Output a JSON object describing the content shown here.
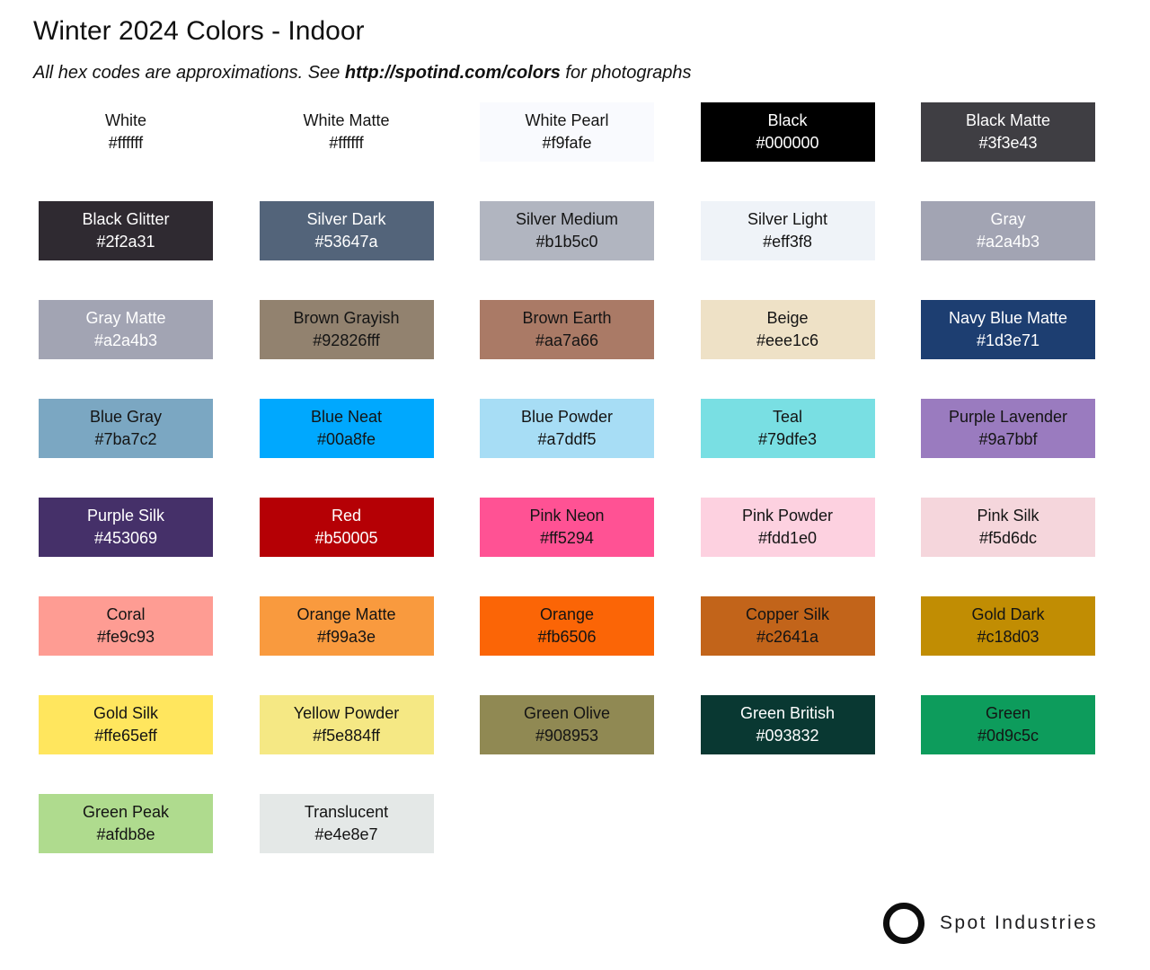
{
  "title": "Winter 2024 Colors - Indoor",
  "subtitle": {
    "prefix": "All hex codes are approximations. See ",
    "url": "http://spotind.com/colors",
    "suffix": " for photographs"
  },
  "brand": {
    "name": "Spot Industries",
    "logo": "circle-outline-icon"
  },
  "swatches": [
    {
      "name": "White",
      "hex": "#ffffff",
      "bg": "#ffffff",
      "text": "dark"
    },
    {
      "name": "White Matte",
      "hex": "#ffffff",
      "bg": "#ffffff",
      "text": "dark"
    },
    {
      "name": "White Pearl",
      "hex": "#f9fafe",
      "bg": "#f9fafe",
      "text": "dark"
    },
    {
      "name": "Black",
      "hex": "#000000",
      "bg": "#000000",
      "text": "light"
    },
    {
      "name": "Black Matte",
      "hex": "#3f3e43",
      "bg": "#3f3e43",
      "text": "light"
    },
    {
      "name": "Black Glitter",
      "hex": "#2f2a31",
      "bg": "#2f2a31",
      "text": "light",
      "texture": "glitter"
    },
    {
      "name": "Silver Dark",
      "hex": "#53647a",
      "bg": "#53647a",
      "text": "light"
    },
    {
      "name": "Silver Medium",
      "hex": "#b1b5c0",
      "bg": "#b1b5c0",
      "text": "dark"
    },
    {
      "name": "Silver Light",
      "hex": "#eff3f8",
      "bg": "#eff3f8",
      "text": "dark"
    },
    {
      "name": "Gray",
      "hex": "#a2a4b3",
      "bg": "#a2a4b3",
      "text": "light"
    },
    {
      "name": "Gray Matte",
      "hex": "#a2a4b3",
      "bg": "#a2a4b3",
      "text": "light"
    },
    {
      "name": "Brown Grayish",
      "hex": "#92826fff",
      "bg": "#92826f",
      "text": "dark"
    },
    {
      "name": "Brown Earth",
      "hex": "#aa7a66",
      "bg": "#aa7a66",
      "text": "dark"
    },
    {
      "name": "Beige",
      "hex": "#eee1c6",
      "bg": "#eee1c6",
      "text": "dark"
    },
    {
      "name": "Navy Blue Matte",
      "hex": "#1d3e71",
      "bg": "#1d3e71",
      "text": "light"
    },
    {
      "name": "Blue Gray",
      "hex": "#7ba7c2",
      "bg": "#7ba7c2",
      "text": "dark"
    },
    {
      "name": "Blue Neat",
      "hex": "#00a8fe",
      "bg": "#00a8fe",
      "text": "dark"
    },
    {
      "name": "Blue Powder",
      "hex": "#a7ddf5",
      "bg": "#a7ddf5",
      "text": "dark"
    },
    {
      "name": "Teal",
      "hex": "#79dfe3",
      "bg": "#79dfe3",
      "text": "dark"
    },
    {
      "name": "Purple Lavender",
      "hex": "#9a7bbf",
      "bg": "#9a7bbf",
      "text": "dark"
    },
    {
      "name": "Purple Silk",
      "hex": "#453069",
      "bg": "#453069",
      "text": "light"
    },
    {
      "name": "Red",
      "hex": "#b50005",
      "bg": "#b50005",
      "text": "light"
    },
    {
      "name": "Pink Neon",
      "hex": "#ff5294",
      "bg": "#ff5294",
      "text": "dark"
    },
    {
      "name": "Pink Powder",
      "hex": "#fdd1e0",
      "bg": "#fdd1e0",
      "text": "dark"
    },
    {
      "name": "Pink Silk",
      "hex": "#f5d6dc",
      "bg": "#f5d6dc",
      "text": "dark"
    },
    {
      "name": "Coral",
      "hex": "#fe9c93",
      "bg": "#fe9c93",
      "text": "dark"
    },
    {
      "name": "Orange Matte",
      "hex": "#f99a3e",
      "bg": "#f99a3e",
      "text": "dark"
    },
    {
      "name": "Orange",
      "hex": "#fb6506",
      "bg": "#fb6506",
      "text": "dark"
    },
    {
      "name": "Copper Silk",
      "hex": "#c2641a",
      "bg": "#c2641a",
      "text": "dark"
    },
    {
      "name": "Gold Dark",
      "hex": "#c18d03",
      "bg": "#c18d03",
      "text": "dark"
    },
    {
      "name": "Gold Silk",
      "hex": "#ffe65eff",
      "bg": "#ffe65e",
      "text": "dark"
    },
    {
      "name": "Yellow Powder",
      "hex": "#f5e884ff",
      "bg": "#f5e884",
      "text": "dark"
    },
    {
      "name": "Green Olive",
      "hex": "#908953",
      "bg": "#908953",
      "text": "dark"
    },
    {
      "name": "Green British",
      "hex": "#093832",
      "bg": "#093832",
      "text": "light"
    },
    {
      "name": "Green",
      "hex": "#0d9c5c",
      "bg": "#0d9c5c",
      "text": "dark"
    },
    {
      "name": "Green Peak",
      "hex": "#afdb8e",
      "bg": "#afdb8e",
      "text": "dark"
    },
    {
      "name": "Translucent",
      "hex": "#e4e8e7",
      "bg": "#e4e8e7",
      "text": "dark"
    }
  ]
}
